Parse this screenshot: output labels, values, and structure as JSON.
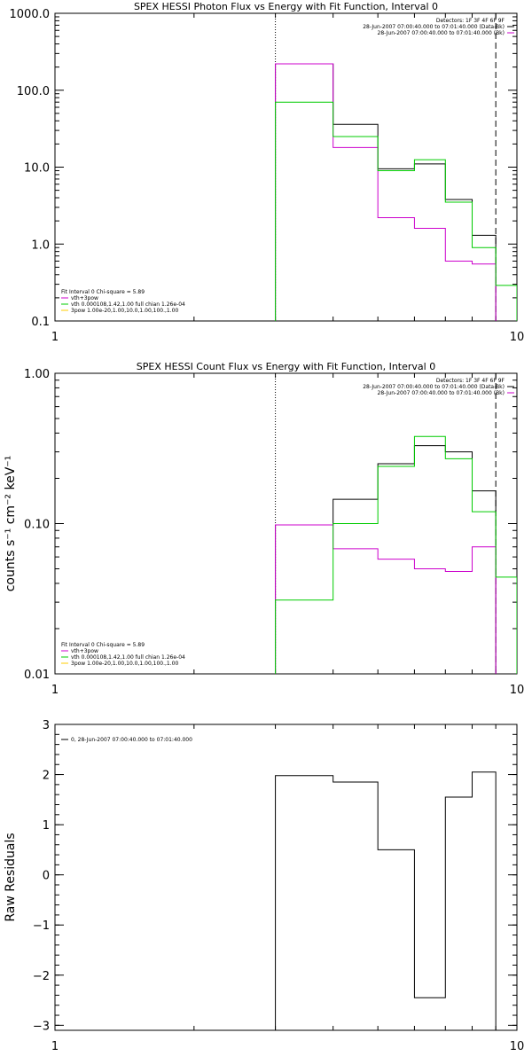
{
  "chart_data": [
    {
      "type": "line",
      "style": "histogram-step",
      "title": "SPEX HESSI Photon Flux vs Energy with Fit Function, Interval 0",
      "xlabel": "",
      "ylabel": "",
      "xscale": "log",
      "yscale": "log",
      "xlim": [
        1,
        10
      ],
      "ylim": [
        0.1,
        1000
      ],
      "xticks": [
        {
          "v": 1,
          "label": "1"
        },
        {
          "v": 10,
          "label": "10"
        }
      ],
      "yticks": [
        {
          "v": 0.1,
          "label": "0.1"
        },
        {
          "v": 1,
          "label": "1.0"
        },
        {
          "v": 10,
          "label": "10.0"
        },
        {
          "v": 100,
          "label": "100.0"
        },
        {
          "v": 1000,
          "label": "1000.0"
        }
      ],
      "header": [
        "Detectors: 1F 3F 4F 6F 9F",
        "28-Jun-2007 07:00:40.000 to 07:01:40.000 (Data-Bk)",
        "28-Jun-2007 07:00:40.000 to 07:01:40.000 (Bk)"
      ],
      "legend_position": "bottom-left",
      "legend": [
        {
          "text": "Fit Interval 0   Chi-square = 5.89",
          "color": ""
        },
        {
          "text": "vth+3pow",
          "color": "#cc00cc"
        },
        {
          "text": "vth 0.000108,1.42,1.00   full chian 1.26e-04",
          "color": "#00cc00"
        },
        {
          "text": "3pow 1.00e-20,1.00,10.0,1.00,100.,1.00",
          "color": "#ffcc00"
        }
      ],
      "vlines": [
        {
          "x": 3,
          "style": "dotted",
          "color": "#000000"
        },
        {
          "x": 9,
          "style": "dashed",
          "color": "#000000"
        }
      ],
      "edges": [
        3,
        4,
        5,
        6,
        7,
        8,
        9,
        10
      ],
      "series": [
        {
          "color": "#000000",
          "values": [
            220,
            36,
            9.5,
            11,
            3.8,
            1.3
          ]
        },
        {
          "color": "#cc00cc",
          "values": [
            220,
            18,
            2.2,
            1.6,
            0.6,
            0.55
          ]
        },
        {
          "color": "#00cc00",
          "values": [
            70,
            25,
            9,
            12.5,
            3.5,
            0.9,
            0.29
          ]
        }
      ]
    },
    {
      "type": "line",
      "style": "histogram-step",
      "title": "SPEX HESSI Count Flux vs Energy with Fit Function, Interval 0",
      "xlabel": "",
      "ylabel": "counts s⁻¹ cm⁻² keV⁻¹",
      "xscale": "log",
      "yscale": "log",
      "xlim": [
        1,
        10
      ],
      "ylim": [
        0.01,
        1
      ],
      "xticks": [
        {
          "v": 1,
          "label": "1"
        },
        {
          "v": 10,
          "label": "10"
        }
      ],
      "yticks": [
        {
          "v": 0.01,
          "label": "0.01"
        },
        {
          "v": 0.1,
          "label": "0.10"
        },
        {
          "v": 1,
          "label": "1.00"
        }
      ],
      "header": [
        "Detectors: 1F 3F 4F 6F 9F",
        "28-Jun-2007 07:00:40.000 to 07:01:40.000 (Data-Bk)",
        "28-Jun-2007 07:00:40.000 to 07:01:40.000 (Bk)"
      ],
      "legend_position": "bottom-left",
      "legend": [
        {
          "text": "Fit Interval 0   Chi-square = 5.89",
          "color": ""
        },
        {
          "text": "vth+3pow",
          "color": "#cc00cc"
        },
        {
          "text": "vth 0.000108,1.42,1.00   full chian 1.26e-04",
          "color": "#00cc00"
        },
        {
          "text": "3pow 1.00e-20,1.00,10.0,1.00,100.,1.00",
          "color": "#ffcc00"
        }
      ],
      "vlines": [
        {
          "x": 3,
          "style": "dotted",
          "color": "#000000"
        },
        {
          "x": 9,
          "style": "dashed",
          "color": "#000000"
        }
      ],
      "edges": [
        3,
        4,
        5,
        6,
        7,
        8,
        9,
        10
      ],
      "series": [
        {
          "color": "#000000",
          "values": [
            0.098,
            0.145,
            0.25,
            0.33,
            0.3,
            0.165
          ]
        },
        {
          "color": "#cc00cc",
          "values": [
            0.098,
            0.068,
            0.058,
            0.05,
            0.048,
            0.07
          ]
        },
        {
          "color": "#00cc00",
          "values": [
            0.031,
            0.1,
            0.24,
            0.38,
            0.27,
            0.12,
            0.044
          ]
        }
      ]
    },
    {
      "type": "line",
      "style": "histogram-step",
      "title": "",
      "xlabel": "",
      "ylabel": "Raw Residuals",
      "xscale": "log",
      "yscale": "linear",
      "xlim": [
        1,
        10
      ],
      "ylim": [
        -3.1,
        3
      ],
      "xticks": [
        {
          "v": 1,
          "label": "1"
        },
        {
          "v": 10,
          "label": "10"
        }
      ],
      "yticks": [
        {
          "v": -3,
          "label": "−3"
        },
        {
          "v": -2,
          "label": "−2"
        },
        {
          "v": -1,
          "label": "−1"
        },
        {
          "v": 0,
          "label": "0"
        },
        {
          "v": 1,
          "label": "1"
        },
        {
          "v": 2,
          "label": "2"
        },
        {
          "v": 3,
          "label": "3"
        }
      ],
      "header": [],
      "legend_position": "top-left",
      "legend": [
        {
          "text": "0, 28-Jun-2007 07:00:40.000 to 07:01:40.000",
          "color": "#000000"
        }
      ],
      "vlines": [],
      "edges": [
        3,
        4,
        5,
        6,
        7,
        8,
        9
      ],
      "series": [
        {
          "color": "#000000",
          "values": [
            1.98,
            1.85,
            0.5,
            -2.45,
            1.55,
            2.05
          ],
          "drop_to_bottom": true
        }
      ]
    }
  ]
}
